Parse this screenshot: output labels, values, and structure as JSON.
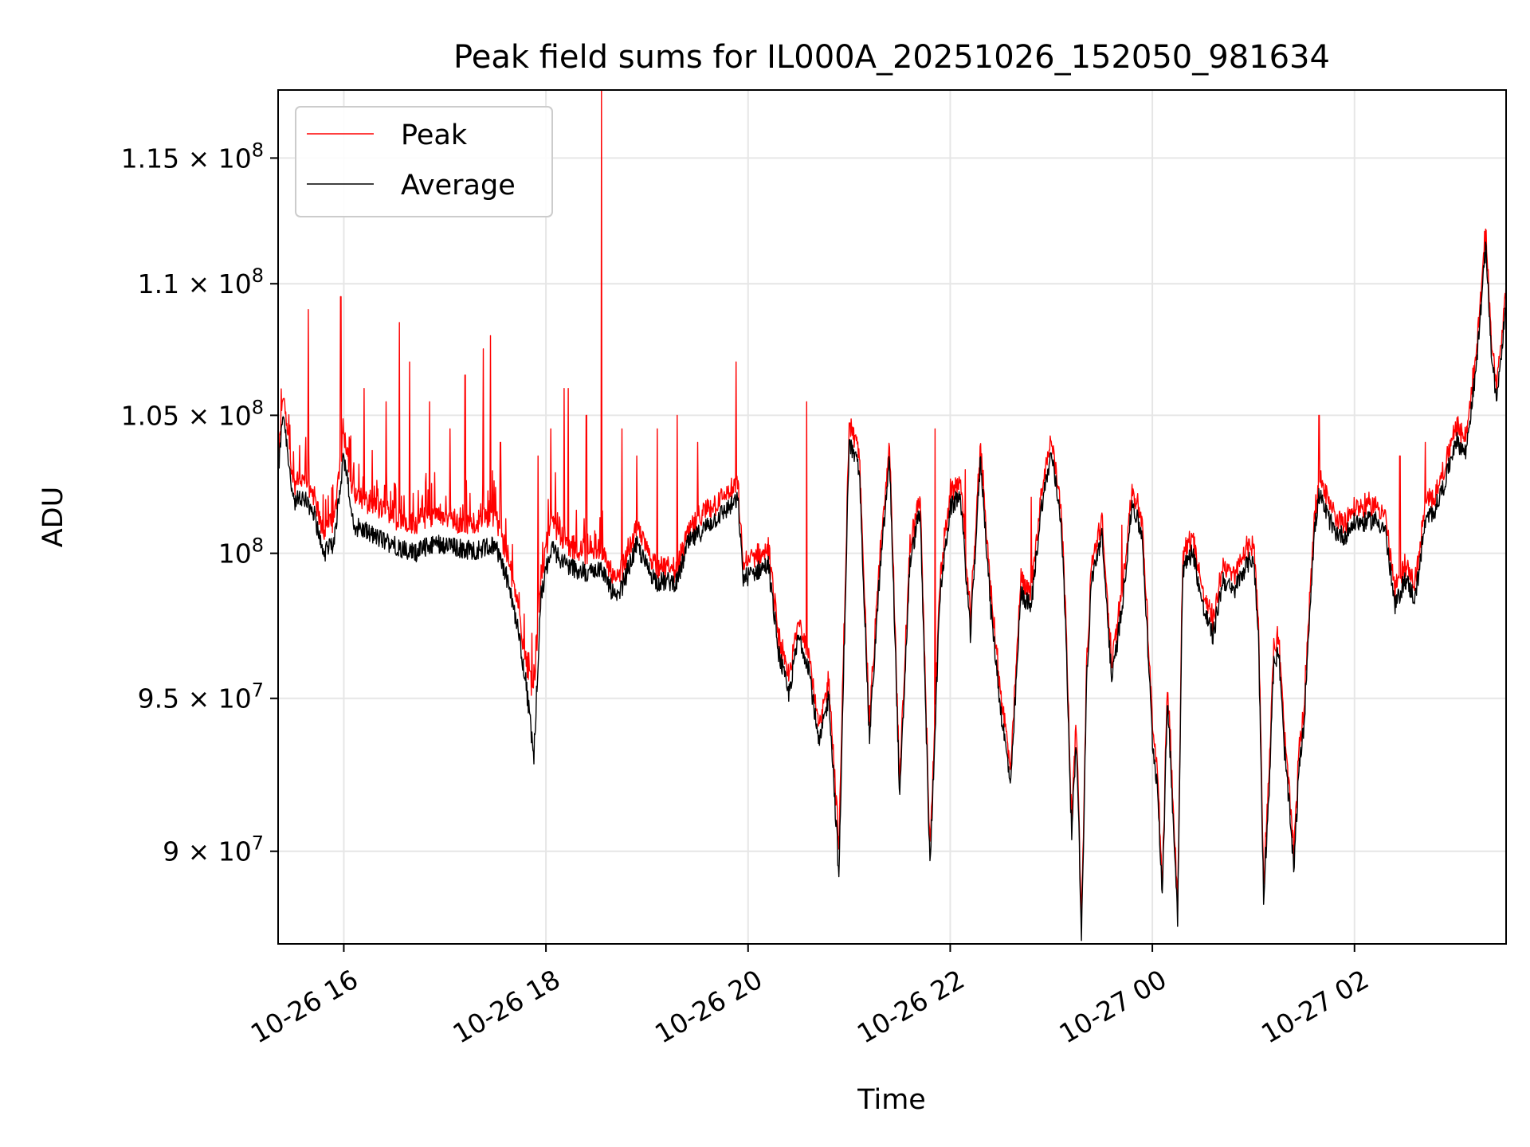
{
  "chart_data": {
    "type": "line",
    "title": "Peak field sums for IL000A_20251026_152050_981634",
    "xlabel": "Time",
    "ylabel": "ADU",
    "xlim": [
      15.35,
      27.5
    ],
    "ylim": [
      87100000,
      117800000
    ],
    "yscale": "log",
    "grid": true,
    "legend_position": "top-left",
    "x_ticks": [
      {
        "value": 16,
        "label": "10-26 16"
      },
      {
        "value": 18,
        "label": "10-26 18"
      },
      {
        "value": 20,
        "label": "10-26 20"
      },
      {
        "value": 22,
        "label": "10-26 22"
      },
      {
        "value": 24,
        "label": "10-27 00"
      },
      {
        "value": 26,
        "label": "10-27 02"
      }
    ],
    "y_ticks": [
      {
        "value": 90000000,
        "mantissa": "9",
        "exponent": "7"
      },
      {
        "value": 95000000,
        "mantissa": "9.5",
        "exponent": "7"
      },
      {
        "value": 100000000,
        "mantissa": "",
        "exponent": "8"
      },
      {
        "value": 105000000,
        "mantissa": "1.05",
        "exponent": "8"
      },
      {
        "value": 110000000,
        "mantissa": "1.1",
        "exponent": "8"
      },
      {
        "value": 115000000,
        "mantissa": "1.15",
        "exponent": "8"
      }
    ],
    "series": [
      {
        "name": "Peak",
        "color": "#ff0000",
        "anchors": [
          [
            15.35,
            103.0
          ],
          [
            15.4,
            105.8
          ],
          [
            15.5,
            102.3
          ],
          [
            15.6,
            102.6
          ],
          [
            15.7,
            102.0
          ],
          [
            15.8,
            100.5
          ],
          [
            15.9,
            101.0
          ],
          [
            16.0,
            104.2
          ],
          [
            16.1,
            101.8
          ],
          [
            16.3,
            101.5
          ],
          [
            16.5,
            101.2
          ],
          [
            16.7,
            100.8
          ],
          [
            16.9,
            101.3
          ],
          [
            17.1,
            101.0
          ],
          [
            17.3,
            100.9
          ],
          [
            17.5,
            101.2
          ],
          [
            17.6,
            100.0
          ],
          [
            17.7,
            98.5
          ],
          [
            17.8,
            96.2
          ],
          [
            17.88,
            95.0
          ],
          [
            17.95,
            99.0
          ],
          [
            18.05,
            101.0
          ],
          [
            18.2,
            100.2
          ],
          [
            18.4,
            99.8
          ],
          [
            18.55,
            100.0
          ],
          [
            18.7,
            98.8
          ],
          [
            18.9,
            100.8
          ],
          [
            19.0,
            100.0
          ],
          [
            19.1,
            99.4
          ],
          [
            19.3,
            99.3
          ],
          [
            19.4,
            100.6
          ],
          [
            19.6,
            101.4
          ],
          [
            19.8,
            102.0
          ],
          [
            19.9,
            102.2
          ],
          [
            19.95,
            99.5
          ],
          [
            20.1,
            99.8
          ],
          [
            20.2,
            100.0
          ],
          [
            20.3,
            97.0
          ],
          [
            20.4,
            95.5
          ],
          [
            20.5,
            97.5
          ],
          [
            20.6,
            96.5
          ],
          [
            20.7,
            93.8
          ],
          [
            20.8,
            95.5
          ],
          [
            20.9,
            90.0
          ],
          [
            21.0,
            104.5
          ],
          [
            21.1,
            103.5
          ],
          [
            21.2,
            94.0
          ],
          [
            21.3,
            99.5
          ],
          [
            21.4,
            103.8
          ],
          [
            21.5,
            92.0
          ],
          [
            21.6,
            100.0
          ],
          [
            21.7,
            102.0
          ],
          [
            21.8,
            89.8
          ],
          [
            21.9,
            99.0
          ],
          [
            22.0,
            102.0
          ],
          [
            22.1,
            102.5
          ],
          [
            22.2,
            97.5
          ],
          [
            22.3,
            103.8
          ],
          [
            22.4,
            98.5
          ],
          [
            22.5,
            95.0
          ],
          [
            22.6,
            92.5
          ],
          [
            22.7,
            99.0
          ],
          [
            22.8,
            98.5
          ],
          [
            22.9,
            102.0
          ],
          [
            23.0,
            104.0
          ],
          [
            23.1,
            101.5
          ],
          [
            23.15,
            97.0
          ],
          [
            23.2,
            91.0
          ],
          [
            23.25,
            94.0
          ],
          [
            23.3,
            87.5
          ],
          [
            23.35,
            96.0
          ],
          [
            23.4,
            99.5
          ],
          [
            23.5,
            101.0
          ],
          [
            23.6,
            96.0
          ],
          [
            23.7,
            98.5
          ],
          [
            23.8,
            102.2
          ],
          [
            23.9,
            101.0
          ],
          [
            24.0,
            94.0
          ],
          [
            24.05,
            92.5
          ],
          [
            24.1,
            88.8
          ],
          [
            24.15,
            95.5
          ],
          [
            24.25,
            88.2
          ],
          [
            24.3,
            99.8
          ],
          [
            24.4,
            100.5
          ],
          [
            24.5,
            98.5
          ],
          [
            24.6,
            97.5
          ],
          [
            24.7,
            99.5
          ],
          [
            24.8,
            99.0
          ],
          [
            24.9,
            99.8
          ],
          [
            25.0,
            100.3
          ],
          [
            25.05,
            97.5
          ],
          [
            25.1,
            89.0
          ],
          [
            25.15,
            92.0
          ],
          [
            25.2,
            96.5
          ],
          [
            25.25,
            97.0
          ],
          [
            25.3,
            94.0
          ],
          [
            25.35,
            92.0
          ],
          [
            25.4,
            89.8
          ],
          [
            25.45,
            93.0
          ],
          [
            25.5,
            94.5
          ],
          [
            25.55,
            98.0
          ],
          [
            25.6,
            101.0
          ],
          [
            25.65,
            102.5
          ],
          [
            25.7,
            102.0
          ],
          [
            25.8,
            101.2
          ],
          [
            25.9,
            101.0
          ],
          [
            26.0,
            101.5
          ],
          [
            26.1,
            101.5
          ],
          [
            26.2,
            101.6
          ],
          [
            26.3,
            101.3
          ],
          [
            26.4,
            98.5
          ],
          [
            26.5,
            99.5
          ],
          [
            26.6,
            98.8
          ],
          [
            26.7,
            101.5
          ],
          [
            26.8,
            102.0
          ],
          [
            26.9,
            103.0
          ],
          [
            27.0,
            104.5
          ],
          [
            27.1,
            104.0
          ],
          [
            27.2,
            107.0
          ],
          [
            27.3,
            112.0
          ],
          [
            27.35,
            108.0
          ],
          [
            27.4,
            106.0
          ],
          [
            27.45,
            107.5
          ],
          [
            27.5,
            110.0
          ]
        ],
        "spikes": [
          [
            15.65,
            109.0
          ],
          [
            15.97,
            109.5
          ],
          [
            16.2,
            106.0
          ],
          [
            16.42,
            105.5
          ],
          [
            16.55,
            108.5
          ],
          [
            16.65,
            107.0
          ],
          [
            16.85,
            105.5
          ],
          [
            17.05,
            104.5
          ],
          [
            17.2,
            106.5
          ],
          [
            17.38,
            107.5
          ],
          [
            17.45,
            108.0
          ],
          [
            17.55,
            104.0
          ],
          [
            17.92,
            103.5
          ],
          [
            18.05,
            104.5
          ],
          [
            18.18,
            106.0
          ],
          [
            18.22,
            106.0
          ],
          [
            18.4,
            105.0
          ],
          [
            18.55,
            117.8
          ],
          [
            18.75,
            104.5
          ],
          [
            18.9,
            103.5
          ],
          [
            19.1,
            104.5
          ],
          [
            19.3,
            105.0
          ],
          [
            19.5,
            104.0
          ],
          [
            19.88,
            107.0
          ],
          [
            20.58,
            105.5
          ],
          [
            21.85,
            104.5
          ],
          [
            22.15,
            103.0
          ],
          [
            22.8,
            102.0
          ],
          [
            23.7,
            101.0
          ],
          [
            25.65,
            105.0
          ],
          [
            26.45,
            103.5
          ],
          [
            26.7,
            104.0
          ]
        ]
      },
      {
        "name": "Average",
        "color": "#000000",
        "anchors": [
          [
            15.35,
            102.8
          ],
          [
            15.4,
            105.2
          ],
          [
            15.5,
            101.8
          ],
          [
            15.6,
            102.0
          ],
          [
            15.7,
            101.5
          ],
          [
            15.8,
            100.0
          ],
          [
            15.9,
            100.3
          ],
          [
            16.0,
            103.5
          ],
          [
            16.1,
            101.0
          ],
          [
            16.3,
            100.6
          ],
          [
            16.5,
            100.3
          ],
          [
            16.7,
            100.0
          ],
          [
            16.9,
            100.4
          ],
          [
            17.1,
            100.2
          ],
          [
            17.3,
            100.1
          ],
          [
            17.5,
            100.3
          ],
          [
            17.6,
            99.3
          ],
          [
            17.7,
            97.8
          ],
          [
            17.8,
            95.6
          ],
          [
            17.88,
            93.0
          ],
          [
            17.95,
            98.5
          ],
          [
            18.05,
            100.2
          ],
          [
            18.2,
            99.6
          ],
          [
            18.4,
            99.3
          ],
          [
            18.55,
            99.5
          ],
          [
            18.7,
            98.3
          ],
          [
            18.9,
            100.3
          ],
          [
            19.0,
            99.5
          ],
          [
            19.1,
            99.0
          ],
          [
            19.3,
            99.0
          ],
          [
            19.4,
            100.3
          ],
          [
            19.6,
            101.0
          ],
          [
            19.8,
            101.6
          ],
          [
            19.9,
            101.9
          ],
          [
            19.95,
            99.1
          ],
          [
            20.1,
            99.4
          ],
          [
            20.2,
            99.6
          ],
          [
            20.3,
            96.6
          ],
          [
            20.4,
            95.1
          ],
          [
            20.5,
            97.1
          ],
          [
            20.6,
            96.1
          ],
          [
            20.7,
            93.4
          ],
          [
            20.8,
            95.1
          ],
          [
            20.9,
            89.2
          ],
          [
            21.0,
            104.0
          ],
          [
            21.1,
            103.0
          ],
          [
            21.2,
            93.6
          ],
          [
            21.3,
            99.1
          ],
          [
            21.4,
            103.4
          ],
          [
            21.5,
            91.6
          ],
          [
            21.6,
            99.6
          ],
          [
            21.7,
            101.6
          ],
          [
            21.8,
            89.4
          ],
          [
            21.9,
            98.6
          ],
          [
            22.0,
            101.6
          ],
          [
            22.1,
            102.1
          ],
          [
            22.2,
            97.1
          ],
          [
            22.3,
            103.4
          ],
          [
            22.4,
            98.1
          ],
          [
            22.5,
            94.6
          ],
          [
            22.6,
            92.1
          ],
          [
            22.7,
            98.6
          ],
          [
            22.8,
            98.1
          ],
          [
            22.9,
            101.6
          ],
          [
            23.0,
            103.6
          ],
          [
            23.1,
            101.1
          ],
          [
            23.15,
            96.6
          ],
          [
            23.2,
            90.6
          ],
          [
            23.25,
            93.6
          ],
          [
            23.3,
            87.3
          ],
          [
            23.35,
            95.6
          ],
          [
            23.4,
            99.1
          ],
          [
            23.5,
            100.6
          ],
          [
            23.6,
            95.6
          ],
          [
            23.7,
            98.1
          ],
          [
            23.8,
            101.8
          ],
          [
            23.9,
            100.6
          ],
          [
            24.0,
            93.6
          ],
          [
            24.05,
            92.1
          ],
          [
            24.1,
            88.6
          ],
          [
            24.15,
            95.1
          ],
          [
            24.25,
            87.9
          ],
          [
            24.3,
            99.4
          ],
          [
            24.4,
            100.1
          ],
          [
            24.5,
            98.1
          ],
          [
            24.6,
            97.1
          ],
          [
            24.7,
            99.1
          ],
          [
            24.8,
            98.6
          ],
          [
            24.9,
            99.4
          ],
          [
            25.0,
            99.9
          ],
          [
            25.05,
            97.1
          ],
          [
            25.1,
            88.6
          ],
          [
            25.15,
            91.6
          ],
          [
            25.2,
            96.1
          ],
          [
            25.25,
            96.6
          ],
          [
            25.3,
            93.6
          ],
          [
            25.35,
            91.6
          ],
          [
            25.4,
            89.4
          ],
          [
            25.45,
            92.6
          ],
          [
            25.5,
            94.1
          ],
          [
            25.55,
            97.6
          ],
          [
            25.6,
            100.6
          ],
          [
            25.65,
            102.1
          ],
          [
            25.7,
            101.6
          ],
          [
            25.8,
            100.8
          ],
          [
            25.9,
            100.6
          ],
          [
            26.0,
            101.1
          ],
          [
            26.1,
            101.1
          ],
          [
            26.2,
            101.2
          ],
          [
            26.3,
            100.9
          ],
          [
            26.4,
            98.1
          ],
          [
            26.5,
            99.1
          ],
          [
            26.6,
            98.4
          ],
          [
            26.7,
            101.1
          ],
          [
            26.8,
            101.6
          ],
          [
            26.9,
            102.6
          ],
          [
            27.0,
            104.1
          ],
          [
            27.1,
            103.6
          ],
          [
            27.2,
            106.6
          ],
          [
            27.3,
            111.5
          ],
          [
            27.35,
            107.6
          ],
          [
            27.4,
            105.6
          ],
          [
            27.45,
            107.1
          ],
          [
            27.5,
            109.5
          ]
        ]
      }
    ]
  }
}
